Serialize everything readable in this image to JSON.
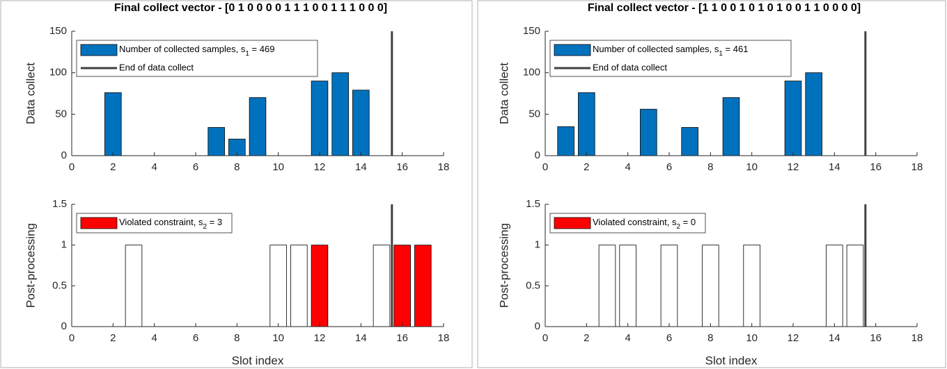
{
  "chart_data": [
    {
      "type": "bar",
      "title": "Final collect vector - [0  1  0  0  0  0  1  1  1  0  0  1  1  1  0  0  0]",
      "ylabel": "Data collect",
      "x": [
        1,
        2,
        3,
        4,
        5,
        6,
        7,
        8,
        9,
        10,
        11,
        12,
        13,
        14,
        15,
        16,
        17
      ],
      "series": [
        {
          "name": "Number of collected samples, s",
          "name_sub": "1",
          "name_suffix": " = 469",
          "color": "#0072bd",
          "values": [
            0,
            76,
            0,
            0,
            0,
            0,
            34,
            20,
            70,
            0,
            0,
            90,
            100,
            79,
            0,
            0,
            0
          ]
        }
      ],
      "vline": {
        "name": "End of data collect",
        "x": 15.5,
        "color": "#404040"
      },
      "xlim": [
        0,
        18
      ],
      "xticks": [
        0,
        2,
        4,
        6,
        8,
        10,
        12,
        14,
        16,
        18
      ],
      "ylim": [
        0,
        150
      ],
      "yticks": [
        0,
        50,
        100,
        150
      ]
    },
    {
      "type": "bar",
      "ylabel": "Post-processing",
      "xlabel": "Slot index",
      "x": [
        1,
        2,
        3,
        4,
        5,
        6,
        7,
        8,
        9,
        10,
        11,
        12,
        13,
        14,
        15,
        16,
        17
      ],
      "series": [
        {
          "name": "Violated constraint, s",
          "name_sub": "2",
          "name_suffix": " = 3",
          "color": "#ff0000",
          "values": [
            0,
            0,
            1,
            0,
            0,
            0,
            0,
            0,
            0,
            1,
            1,
            1,
            0,
            0,
            1,
            1,
            1
          ],
          "violated": [
            false,
            false,
            false,
            false,
            false,
            false,
            false,
            false,
            false,
            false,
            false,
            true,
            false,
            false,
            false,
            true,
            true
          ]
        }
      ],
      "vline": {
        "x": 15.5,
        "color": "#404040"
      },
      "xlim": [
        0,
        18
      ],
      "xticks": [
        0,
        2,
        4,
        6,
        8,
        10,
        12,
        14,
        16,
        18
      ],
      "ylim": [
        0,
        1.5
      ],
      "yticks": [
        0,
        0.5,
        1,
        1.5
      ]
    },
    {
      "type": "bar",
      "title": "Final collect vector - [1  1  0  0  1  0  1  0  1  0  0  1  1  0  0  0  0]",
      "ylabel": "Data collect",
      "x": [
        1,
        2,
        3,
        4,
        5,
        6,
        7,
        8,
        9,
        10,
        11,
        12,
        13,
        14,
        15,
        16,
        17
      ],
      "series": [
        {
          "name": "Number of collected samples, s",
          "name_sub": "1",
          "name_suffix": " = 461",
          "color": "#0072bd",
          "values": [
            35,
            76,
            0,
            0,
            56,
            0,
            34,
            0,
            70,
            0,
            0,
            90,
            100,
            0,
            0,
            0,
            0
          ]
        }
      ],
      "vline": {
        "name": "End of data collect",
        "x": 15.5,
        "color": "#404040"
      },
      "xlim": [
        0,
        18
      ],
      "xticks": [
        0,
        2,
        4,
        6,
        8,
        10,
        12,
        14,
        16,
        18
      ],
      "ylim": [
        0,
        150
      ],
      "yticks": [
        0,
        50,
        100,
        150
      ]
    },
    {
      "type": "bar",
      "ylabel": "Post-processing",
      "xlabel": "Slot index",
      "x": [
        1,
        2,
        3,
        4,
        5,
        6,
        7,
        8,
        9,
        10,
        11,
        12,
        13,
        14,
        15,
        16,
        17
      ],
      "series": [
        {
          "name": "Violated constraint, s",
          "name_sub": "2",
          "name_suffix": " = 0",
          "color": "#ff0000",
          "values": [
            0,
            0,
            1,
            1,
            0,
            1,
            0,
            1,
            0,
            1,
            0,
            0,
            0,
            1,
            1,
            0,
            0
          ],
          "violated": [
            false,
            false,
            false,
            false,
            false,
            false,
            false,
            false,
            false,
            false,
            false,
            false,
            false,
            false,
            false,
            false,
            false
          ]
        }
      ],
      "vline": {
        "x": 15.5,
        "color": "#404040"
      },
      "xlim": [
        0,
        18
      ],
      "xticks": [
        0,
        2,
        4,
        6,
        8,
        10,
        12,
        14,
        16,
        18
      ],
      "ylim": [
        0,
        1.5
      ],
      "yticks": [
        0,
        0.5,
        1,
        1.5
      ]
    }
  ]
}
